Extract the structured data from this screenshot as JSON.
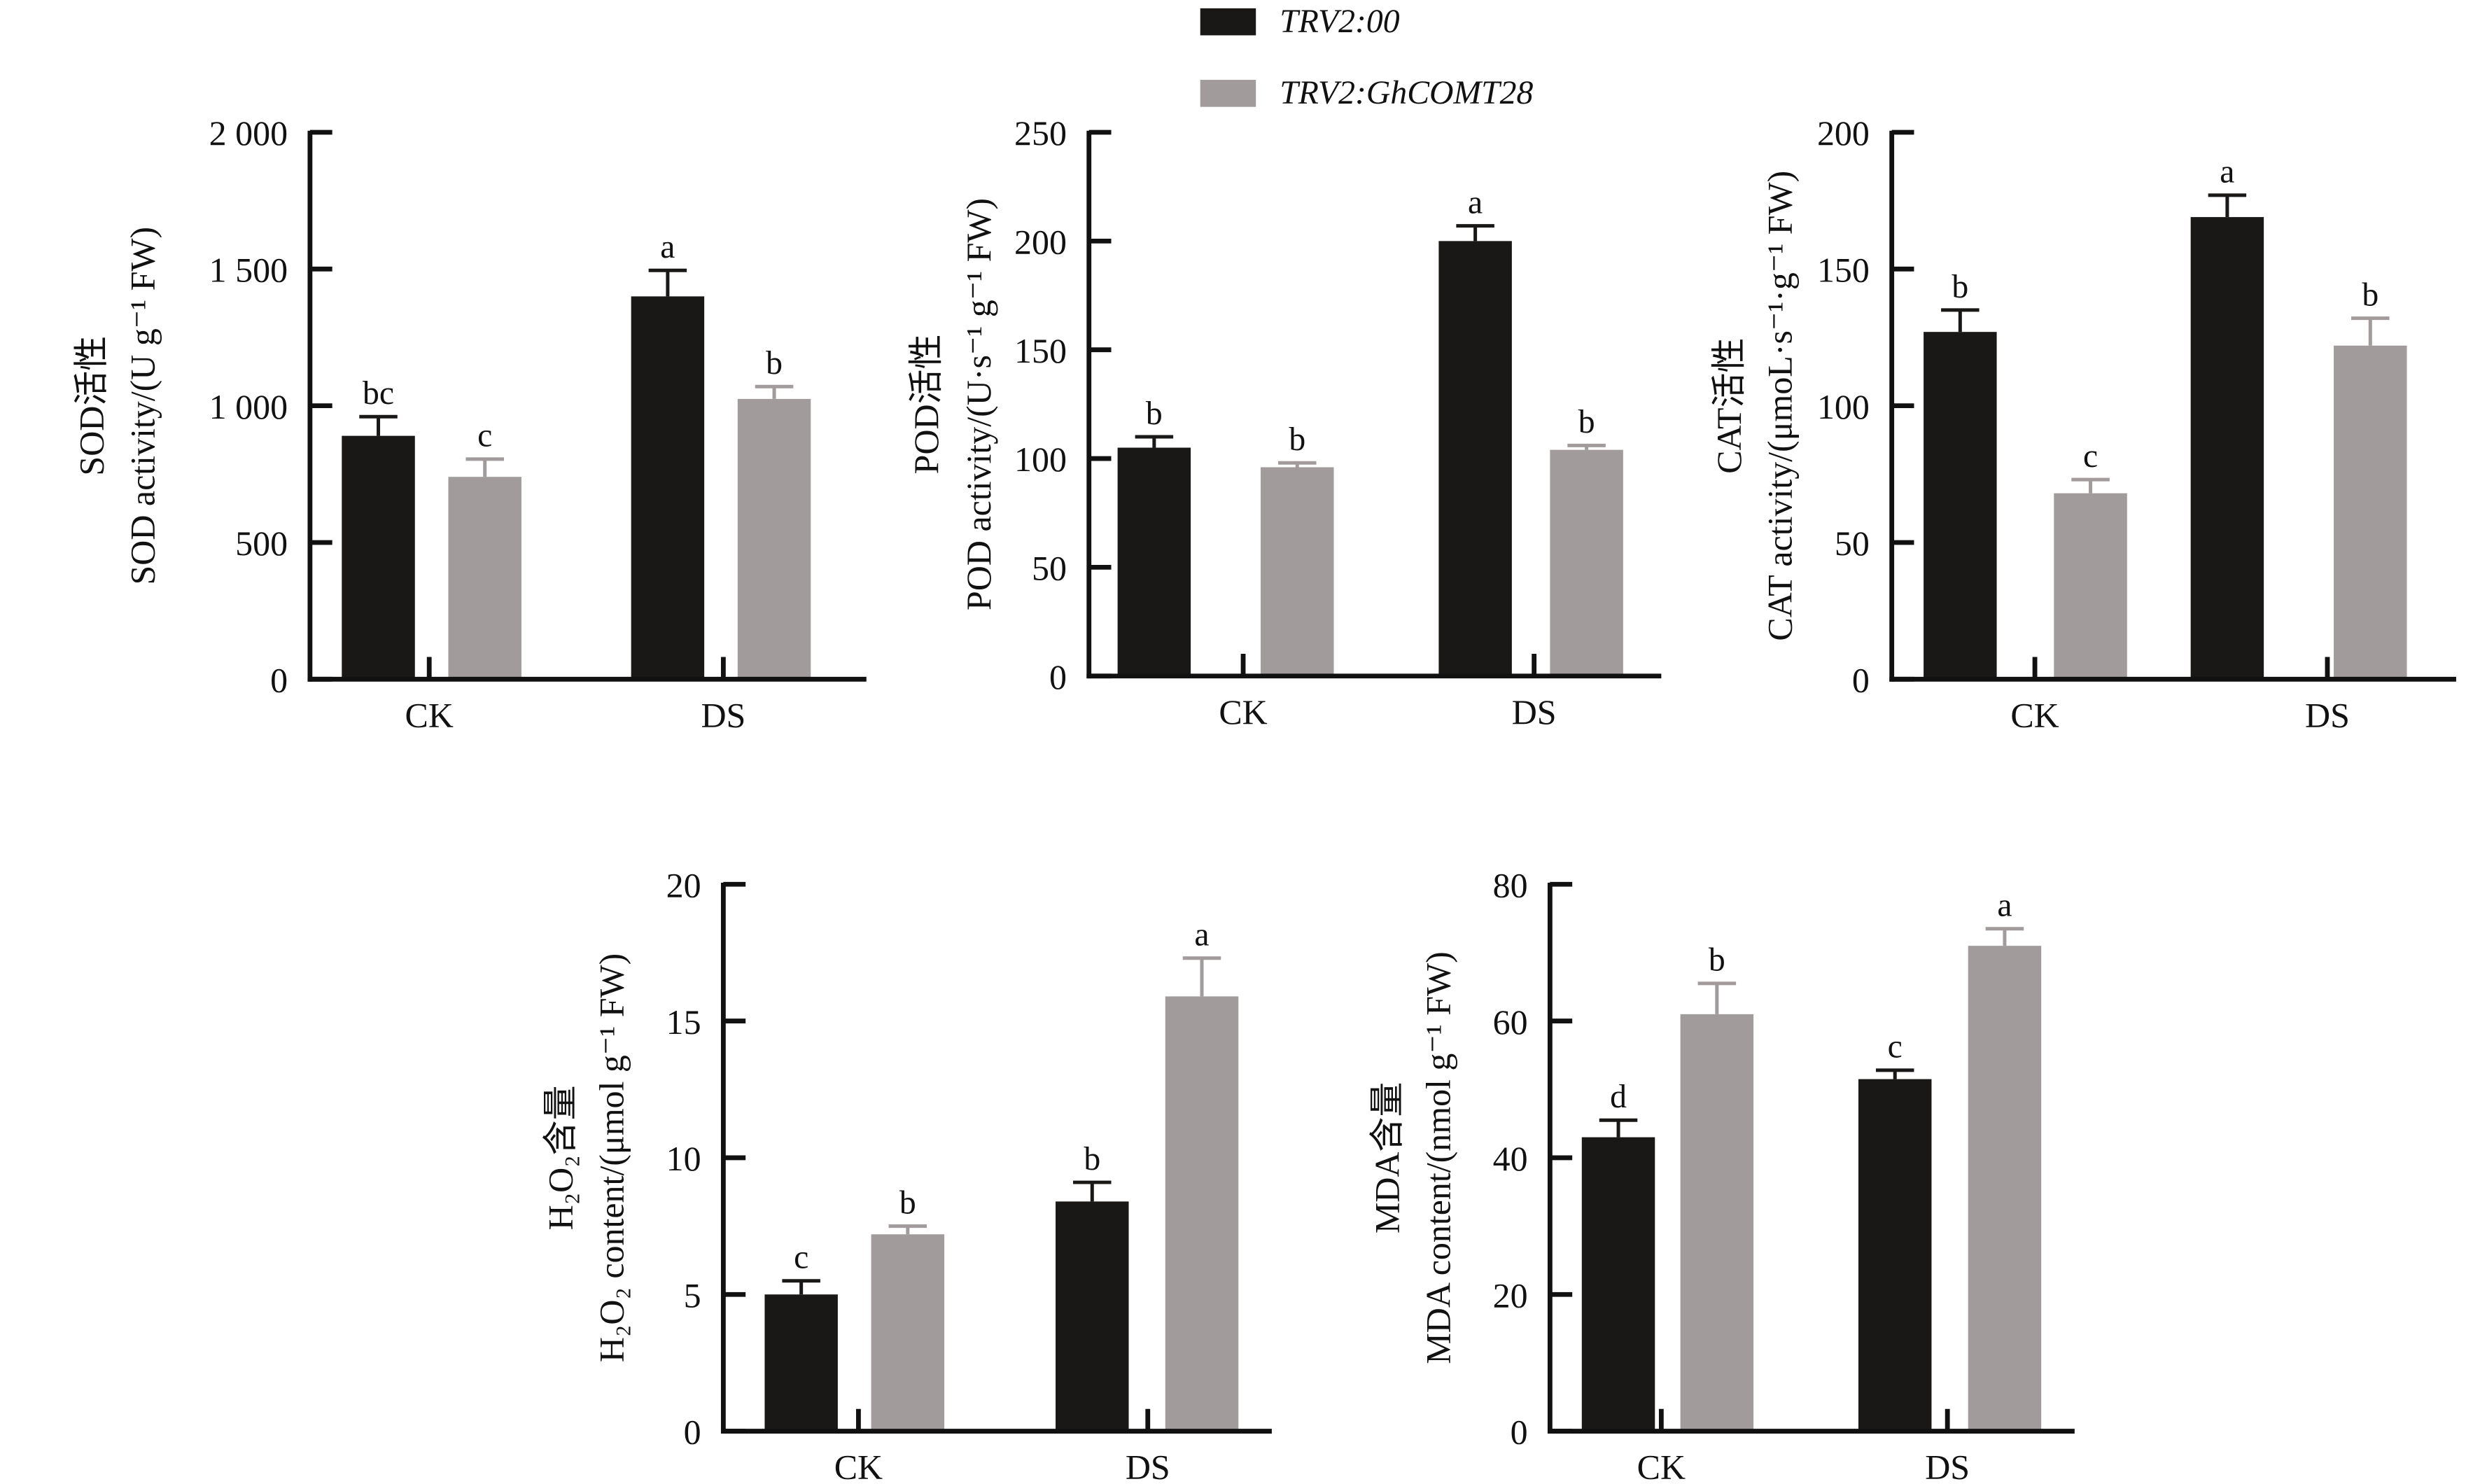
{
  "legend": {
    "position": "top-center",
    "items": [
      {
        "label": "TRV2:00",
        "color": "#1a1816"
      },
      {
        "label": "TRV2:GhCOMT28",
        "color": "#a19b9b"
      }
    ]
  },
  "chart_data": [
    {
      "type": "bar",
      "ylabel_cn": "SOD活性",
      "ylabel": "SOD activity/(U g⁻¹ FW)",
      "categories": [
        "CK",
        "DS"
      ],
      "ylim": [
        0,
        2000
      ],
      "yticks": [
        0,
        500,
        1000,
        1500,
        2000
      ],
      "ytick_labels": [
        "0",
        "500",
        "1 000",
        "1 500",
        "2 000"
      ],
      "series": [
        {
          "name": "TRV2:00",
          "values": [
            890,
            1400
          ],
          "errors": [
            70,
            95
          ],
          "letters": [
            "bc",
            "a"
          ]
        },
        {
          "name": "TRV2:GhCOMT28",
          "values": [
            740,
            1025
          ],
          "errors": [
            65,
            45
          ],
          "letters": [
            "c",
            "b"
          ]
        }
      ]
    },
    {
      "type": "bar",
      "ylabel_cn": "POD活性",
      "ylabel": "POD activity/(U·s⁻¹ g⁻¹ FW)",
      "categories": [
        "CK",
        "DS"
      ],
      "ylim": [
        0,
        250
      ],
      "yticks": [
        0,
        50,
        100,
        150,
        200,
        250
      ],
      "ytick_labels": [
        "0",
        "50",
        "100",
        "150",
        "200",
        "250"
      ],
      "series": [
        {
          "name": "TRV2:00",
          "values": [
            105,
            200
          ],
          "errors": [
            5,
            7
          ],
          "letters": [
            "b",
            "a"
          ]
        },
        {
          "name": "TRV2:GhCOMT28",
          "values": [
            96,
            104
          ],
          "errors": [
            2,
            2
          ],
          "letters": [
            "b",
            "b"
          ]
        }
      ]
    },
    {
      "type": "bar",
      "ylabel_cn": "CAT活性",
      "ylabel": "CAT activity/(μmoL·s⁻¹·g⁻¹ FW)",
      "categories": [
        "CK",
        "DS"
      ],
      "ylim": [
        0,
        200
      ],
      "yticks": [
        0,
        50,
        100,
        150,
        200
      ],
      "ytick_labels": [
        "0",
        "50",
        "100",
        "150",
        "200"
      ],
      "series": [
        {
          "name": "TRV2:00",
          "values": [
            127,
            169
          ],
          "errors": [
            8,
            8
          ],
          "letters": [
            "b",
            "a"
          ]
        },
        {
          "name": "TRV2:GhCOMT28",
          "values": [
            68,
            122
          ],
          "errors": [
            5,
            10
          ],
          "letters": [
            "c",
            "b"
          ]
        }
      ]
    },
    {
      "type": "bar",
      "ylabel_cn": "H₂O₂含量",
      "ylabel": "H₂O₂ content/(μmol g⁻¹ FW)",
      "categories": [
        "CK",
        "DS"
      ],
      "ylim": [
        0,
        20
      ],
      "yticks": [
        0,
        5,
        10,
        15,
        20
      ],
      "ytick_labels": [
        "0",
        "5",
        "10",
        "15",
        "20"
      ],
      "series": [
        {
          "name": "TRV2:00",
          "values": [
            5.0,
            8.4
          ],
          "errors": [
            0.5,
            0.7
          ],
          "letters": [
            "c",
            "b"
          ]
        },
        {
          "name": "TRV2:GhCOMT28",
          "values": [
            7.2,
            15.9
          ],
          "errors": [
            0.3,
            1.4
          ],
          "letters": [
            "b",
            "a"
          ]
        }
      ]
    },
    {
      "type": "bar",
      "ylabel_cn": "MDA含量",
      "ylabel": "MDA content/(nmol g⁻¹ FW)",
      "categories": [
        "CK",
        "DS"
      ],
      "ylim": [
        0,
        80
      ],
      "yticks": [
        0,
        20,
        40,
        60,
        80
      ],
      "ytick_labels": [
        "0",
        "20",
        "40",
        "60",
        "80"
      ],
      "series": [
        {
          "name": "TRV2:00",
          "values": [
            43,
            51.5
          ],
          "errors": [
            2.5,
            1.3
          ],
          "letters": [
            "d",
            "c"
          ]
        },
        {
          "name": "TRV2:GhCOMT28",
          "values": [
            61,
            71
          ],
          "errors": [
            4.5,
            2.5
          ],
          "letters": [
            "b",
            "a"
          ]
        }
      ]
    }
  ]
}
